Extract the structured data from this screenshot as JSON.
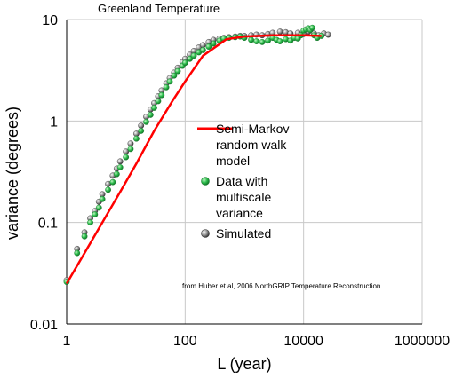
{
  "chart_data": {
    "type": "scatter",
    "title": "Greenland Temperature",
    "xlabel": "L (year)",
    "ylabel": "variance (degrees)",
    "xscale": "log",
    "yscale": "log",
    "xlim": [
      1,
      1000000
    ],
    "ylim": [
      0.01,
      10
    ],
    "x_ticks": [
      "1",
      "100",
      "10000",
      "1000000"
    ],
    "y_ticks": [
      "0.01",
      "0.1",
      "1",
      "10"
    ],
    "grid": true,
    "legend_placement": "center-right",
    "annotation": "from Huber et al, 2006 NorthGRIP Temperature Reconstruction",
    "series": [
      {
        "name": "Semi-Markov random walk model",
        "kind": "line",
        "color": "#ff0000",
        "x": [
          1,
          2,
          4,
          8,
          15,
          30,
          60,
          100,
          200,
          500,
          1000,
          3000,
          10000,
          20000
        ],
        "y": [
          0.025,
          0.05,
          0.1,
          0.2,
          0.38,
          0.8,
          1.55,
          2.45,
          4.4,
          6.4,
          6.8,
          7.0,
          7.0,
          6.9
        ]
      },
      {
        "name": "Data with multiscale variance",
        "kind": "points",
        "color": "#22b14c",
        "x": [
          1,
          1.5,
          2,
          2.5,
          3,
          3.5,
          4,
          5,
          6,
          7,
          8,
          10,
          12,
          15,
          18,
          22,
          26,
          30,
          35,
          40,
          48,
          55,
          65,
          75,
          90,
          100,
          120,
          140,
          170,
          200,
          250,
          300,
          380,
          450,
          550,
          700,
          850,
          1000,
          1300,
          1600,
          2000,
          2500,
          3000,
          3500,
          4000,
          5000,
          6000,
          7000,
          8000,
          9000,
          10000,
          11000,
          12000,
          13000,
          14000,
          15000,
          17000,
          20000
        ],
        "y": [
          0.026,
          0.05,
          0.073,
          0.1,
          0.12,
          0.14,
          0.17,
          0.21,
          0.25,
          0.3,
          0.35,
          0.44,
          0.53,
          0.67,
          0.8,
          0.98,
          1.15,
          1.35,
          1.57,
          1.8,
          2.15,
          2.45,
          2.8,
          3.1,
          3.5,
          3.75,
          4.1,
          4.4,
          4.75,
          5.0,
          5.4,
          5.8,
          6.2,
          6.5,
          6.6,
          6.7,
          6.8,
          6.6,
          6.3,
          6.1,
          6.0,
          6.2,
          6.6,
          6.3,
          6.1,
          6.4,
          6.2,
          6.6,
          6.5,
          7.0,
          7.8,
          8.0,
          8.2,
          7.9,
          8.3,
          7.0,
          6.6,
          6.9
        ]
      },
      {
        "name": "Simulated",
        "kind": "points",
        "color": "#808080",
        "x": [
          1,
          1.5,
          2,
          2.5,
          3,
          3.5,
          4,
          5,
          6,
          7,
          8,
          10,
          12,
          15,
          18,
          22,
          26,
          30,
          35,
          40,
          48,
          55,
          65,
          75,
          90,
          100,
          120,
          140,
          170,
          200,
          250,
          300,
          380,
          450,
          550,
          700,
          850,
          1000,
          1300,
          1600,
          2000,
          2500,
          3000,
          4000,
          5000,
          6000,
          8000,
          10000,
          12000,
          15000,
          18000,
          22000,
          26000
        ],
        "y": [
          0.027,
          0.055,
          0.08,
          0.11,
          0.13,
          0.16,
          0.19,
          0.24,
          0.29,
          0.34,
          0.4,
          0.5,
          0.6,
          0.75,
          0.9,
          1.1,
          1.3,
          1.5,
          1.75,
          2.0,
          2.35,
          2.65,
          3.0,
          3.35,
          3.8,
          4.1,
          4.5,
          4.9,
          5.3,
          5.6,
          6.0,
          6.3,
          6.5,
          6.6,
          6.7,
          6.8,
          6.9,
          6.9,
          7.0,
          7.1,
          7.0,
          7.2,
          7.4,
          7.6,
          7.5,
          7.3,
          7.4,
          7.2,
          7.6,
          7.3,
          7.0,
          7.3,
          7.1
        ]
      }
    ],
    "legend": [
      "Semi-Markov",
      "random walk",
      "model",
      "Data with",
      "multiscale",
      "variance",
      "Simulated"
    ]
  }
}
